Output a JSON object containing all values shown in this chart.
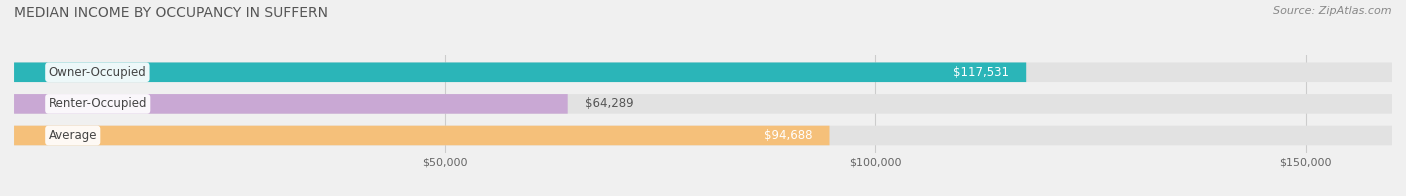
{
  "title": "MEDIAN INCOME BY OCCUPANCY IN SUFFERN",
  "source": "Source: ZipAtlas.com",
  "categories": [
    "Owner-Occupied",
    "Renter-Occupied",
    "Average"
  ],
  "values": [
    117531,
    64289,
    94688
  ],
  "bar_colors": [
    "#2bb5b8",
    "#c9a8d4",
    "#f5c07a"
  ],
  "bar_bg_color": "#e2e2e2",
  "value_labels": [
    "$117,531",
    "$64,289",
    "$94,688"
  ],
  "xlim": [
    0,
    160000
  ],
  "xticks": [
    50000,
    100000,
    150000
  ],
  "xtick_labels": [
    "$50,000",
    "$100,000",
    "$150,000"
  ],
  "title_fontsize": 10,
  "label_fontsize": 8.5,
  "value_fontsize": 8.5,
  "source_fontsize": 8,
  "bar_height": 0.62,
  "background_color": "#f0f0f0"
}
